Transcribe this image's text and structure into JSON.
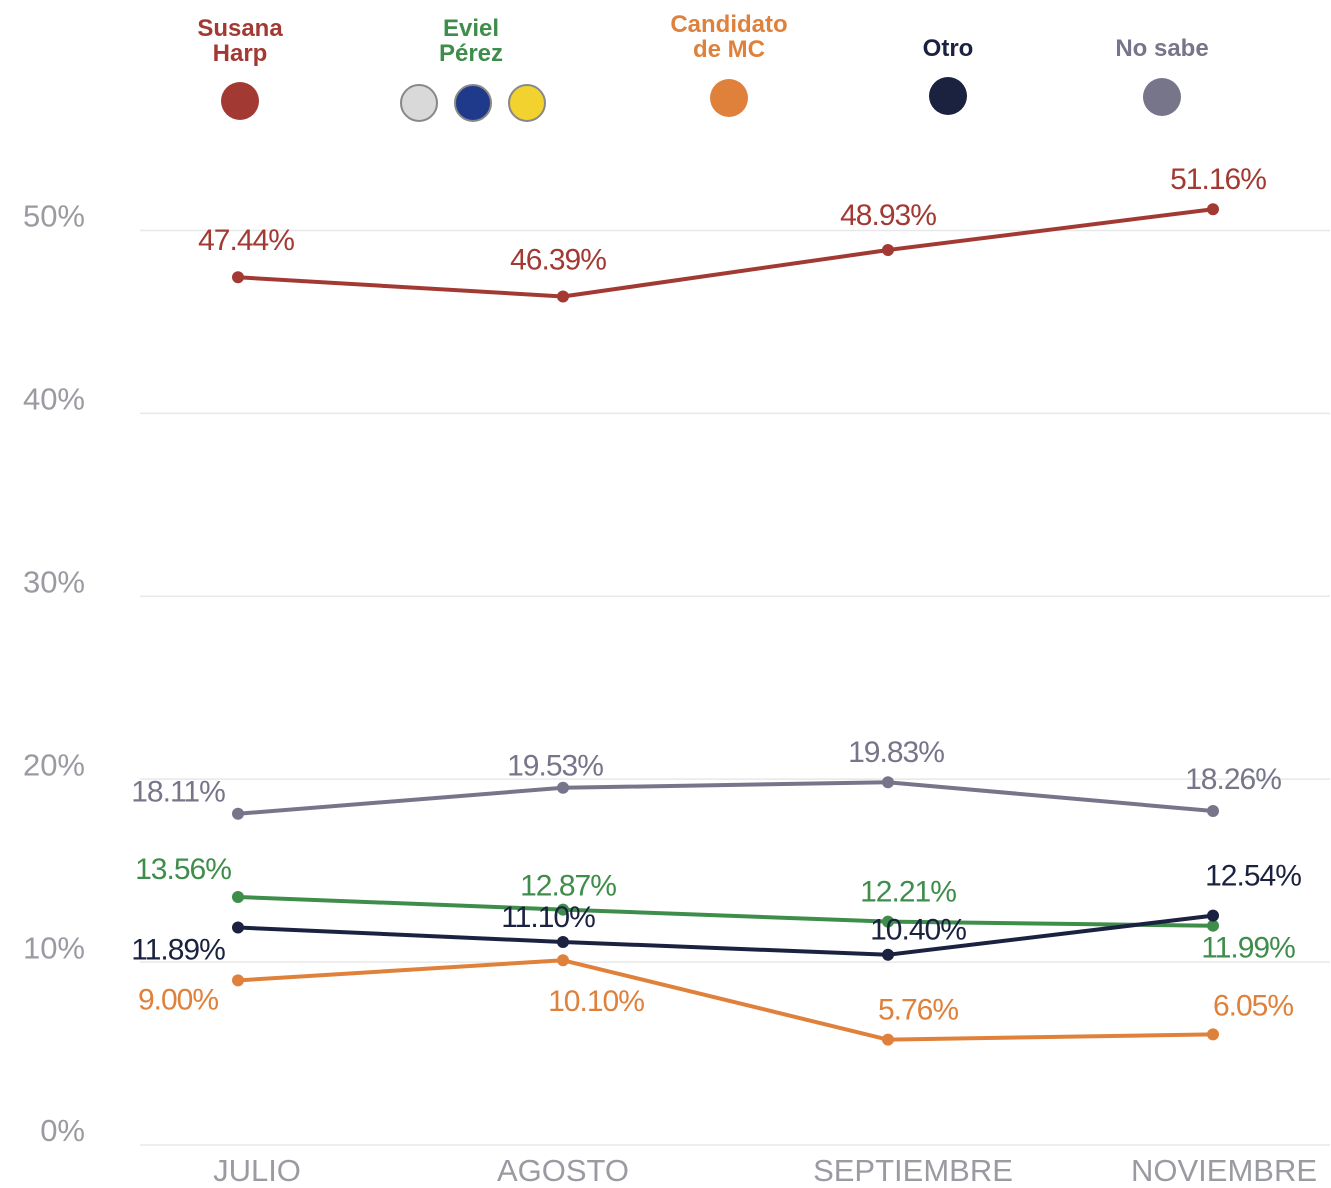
{
  "chart_data": {
    "type": "line",
    "categories": [
      "JULIO",
      "AGOSTO",
      "SEPTIEMBRE",
      "NOVIEMBRE"
    ],
    "series": [
      {
        "name": "Susana Harp",
        "color": "#a23a33",
        "values": [
          47.44,
          46.39,
          48.93,
          51.16
        ],
        "value_labels": [
          "47.44%",
          "46.39%",
          "48.93%",
          "51.16%"
        ]
      },
      {
        "name": "Eviel Pérez",
        "color": "#3f8d4b",
        "values": [
          13.56,
          12.87,
          12.21,
          11.99
        ],
        "value_labels": [
          "13.56%",
          "12.87%",
          "12.21%",
          "11.99%"
        ]
      },
      {
        "name": "Candidato de MC",
        "color": "#df813b",
        "values": [
          9.0,
          10.1,
          5.76,
          6.05
        ],
        "value_labels": [
          "9.00%",
          "10.10%",
          "5.76%",
          "6.05%"
        ]
      },
      {
        "name": "Otro",
        "color": "#1b2240",
        "values": [
          11.89,
          11.1,
          10.4,
          12.54
        ],
        "value_labels": [
          "11.89%",
          "11.10%",
          "10.40%",
          "12.54%"
        ]
      },
      {
        "name": "No sabe",
        "color": "#76758a",
        "values": [
          18.11,
          19.53,
          19.83,
          18.26
        ],
        "value_labels": [
          "18.11%",
          "19.53%",
          "19.83%",
          "18.26%"
        ]
      }
    ],
    "ylim": [
      0,
      55
    ],
    "yticks": [
      {
        "value": 0,
        "label": "0%"
      },
      {
        "value": 10,
        "label": "10%"
      },
      {
        "value": 20,
        "label": "20%"
      },
      {
        "value": 30,
        "label": "30%"
      },
      {
        "value": 40,
        "label": "40%"
      },
      {
        "value": 50,
        "label": "50%"
      }
    ],
    "grid": true
  }
}
